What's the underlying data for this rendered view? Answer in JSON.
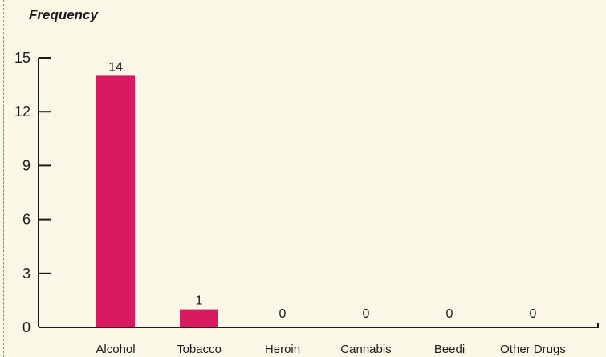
{
  "chart_data": {
    "type": "bar",
    "ylabel": "Frequency",
    "xlabel": "",
    "categories": [
      "Alcohol",
      "Tobacco",
      "Heroin",
      "Cannabis",
      "Beedi",
      "Other Drugs"
    ],
    "values": [
      14,
      1,
      0,
      0,
      0,
      0
    ],
    "data_labels": [
      "14",
      "1",
      "0",
      "0",
      "0",
      "0"
    ],
    "ylim": [
      0,
      15
    ],
    "yticks": [
      0,
      3,
      6,
      9,
      12,
      15
    ],
    "ytick_labels": [
      "0",
      "3",
      "6",
      "9",
      "12",
      "15"
    ],
    "grid": false,
    "legend": "none",
    "bar_color": "#d81b60"
  }
}
